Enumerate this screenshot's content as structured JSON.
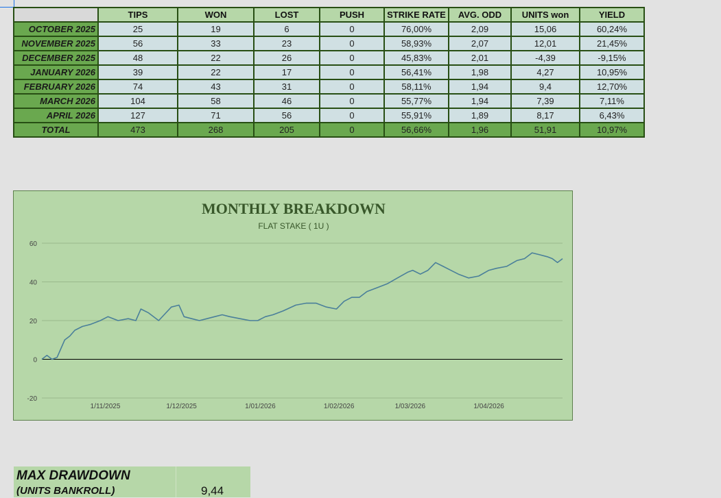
{
  "table": {
    "headers": [
      "",
      "TIPS",
      "WON",
      "LOST",
      "PUSH",
      "STRIKE RATE",
      "AVG. ODD",
      "UNITS won",
      "YIELD"
    ],
    "rows": [
      {
        "month": "OCTOBER 2025",
        "tips": "25",
        "won": "19",
        "lost": "6",
        "push": "0",
        "strike_rate": "76,00%",
        "avg_odd": "2,09",
        "units_won": "15,06",
        "yield": "60,24%"
      },
      {
        "month": "NOVEMBER 2025",
        "tips": "56",
        "won": "33",
        "lost": "23",
        "push": "0",
        "strike_rate": "58,93%",
        "avg_odd": "2,07",
        "units_won": "12,01",
        "yield": "21,45%"
      },
      {
        "month": "DECEMBER 2025",
        "tips": "48",
        "won": "22",
        "lost": "26",
        "push": "0",
        "strike_rate": "45,83%",
        "avg_odd": "2,01",
        "units_won": "-4,39",
        "yield": "-9,15%"
      },
      {
        "month": "JANUARY 2026",
        "tips": "39",
        "won": "22",
        "lost": "17",
        "push": "0",
        "strike_rate": "56,41%",
        "avg_odd": "1,98",
        "units_won": "4,27",
        "yield": "10,95%"
      },
      {
        "month": "FEBRUARY 2026",
        "tips": "74",
        "won": "43",
        "lost": "31",
        "push": "0",
        "strike_rate": "58,11%",
        "avg_odd": "1,94",
        "units_won": "9,4",
        "yield": "12,70%"
      },
      {
        "month": "MARCH 2026",
        "tips": "104",
        "won": "58",
        "lost": "46",
        "push": "0",
        "strike_rate": "55,77%",
        "avg_odd": "1,94",
        "units_won": "7,39",
        "yield": "7,11%"
      },
      {
        "month": "APRIL 2026",
        "tips": "127",
        "won": "71",
        "lost": "56",
        "push": "0",
        "strike_rate": "55,91%",
        "avg_odd": "1,89",
        "units_won": "8,17",
        "yield": "6,43%"
      }
    ],
    "total": {
      "month": "TOTAL",
      "tips": "473",
      "won": "268",
      "lost": "205",
      "push": "0",
      "strike_rate": "56,66%",
      "avg_odd": "1,96",
      "units_won": "51,91",
      "yield": "10,97%"
    }
  },
  "colors": {
    "header_bg": "#b6d7a8",
    "month_bg": "#6aa84f",
    "cell_bg": "#d0e0e3",
    "border": "#274e13",
    "chart_bg": "#b6d7a8",
    "line": "#4a7f9a",
    "title": "#38572a"
  },
  "chart_data": {
    "type": "line",
    "title": "MONTHLY BREAKDOWN",
    "subtitle": "FLAT STAKE ( 1U )",
    "xlabel": "",
    "ylabel": "",
    "yticks": [
      -20,
      0,
      20,
      40,
      60
    ],
    "ylim": [
      -20,
      60
    ],
    "xticks": [
      "1/11/2025",
      "1/12/2025",
      "1/01/2026",
      "1/02/2026",
      "1/03/2026",
      "1/04/2026"
    ],
    "xlim": [
      "2025-10-07",
      "2026-04-30"
    ],
    "grid": true,
    "series": [
      {
        "x": [
          "2025-10-07",
          "2025-10-09",
          "2025-10-11",
          "2025-10-13",
          "2025-10-16",
          "2025-10-18",
          "2025-10-20",
          "2025-10-23",
          "2025-10-26",
          "2025-10-30",
          "2025-11-02",
          "2025-11-06",
          "2025-11-10",
          "2025-11-13",
          "2025-11-15",
          "2025-11-18",
          "2025-11-22",
          "2025-11-27",
          "2025-11-30",
          "2025-12-02",
          "2025-12-05",
          "2025-12-08",
          "2025-12-11",
          "2025-12-14",
          "2025-12-17",
          "2025-12-20",
          "2025-12-24",
          "2025-12-28",
          "2025-12-31",
          "2026-01-03",
          "2026-01-06",
          "2026-01-10",
          "2026-01-15",
          "2026-01-19",
          "2026-01-23",
          "2026-01-27",
          "2026-01-31",
          "2026-02-03",
          "2026-02-06",
          "2026-02-09",
          "2026-02-12",
          "2026-02-16",
          "2026-02-20",
          "2026-02-24",
          "2026-02-28",
          "2026-03-02",
          "2026-03-05",
          "2026-03-08",
          "2026-03-11",
          "2026-03-14",
          "2026-03-17",
          "2026-03-20",
          "2026-03-24",
          "2026-03-28",
          "2026-04-01",
          "2026-04-04",
          "2026-04-08",
          "2026-04-12",
          "2026-04-15",
          "2026-04-18",
          "2026-04-21",
          "2026-04-24",
          "2026-04-26",
          "2026-04-28",
          "2026-04-30"
        ],
        "y": [
          0,
          2,
          0,
          1,
          10,
          12,
          15,
          17,
          18,
          20,
          22,
          20,
          21,
          20,
          26,
          24,
          20,
          27,
          28,
          22,
          21,
          20,
          21,
          22,
          23,
          22,
          21,
          20,
          20,
          22,
          23,
          25,
          28,
          29,
          29,
          27,
          26,
          30,
          32,
          32,
          35,
          37,
          39,
          42,
          45,
          46,
          44,
          46,
          50,
          48,
          46,
          44,
          42,
          43,
          46,
          47,
          48,
          51,
          52,
          55,
          54,
          53,
          52,
          50,
          52
        ]
      }
    ]
  },
  "drawdown": {
    "label": "MAX DRAWDOWN",
    "sublabel": "(UNITS BANKROLL)",
    "value": "9,44"
  }
}
